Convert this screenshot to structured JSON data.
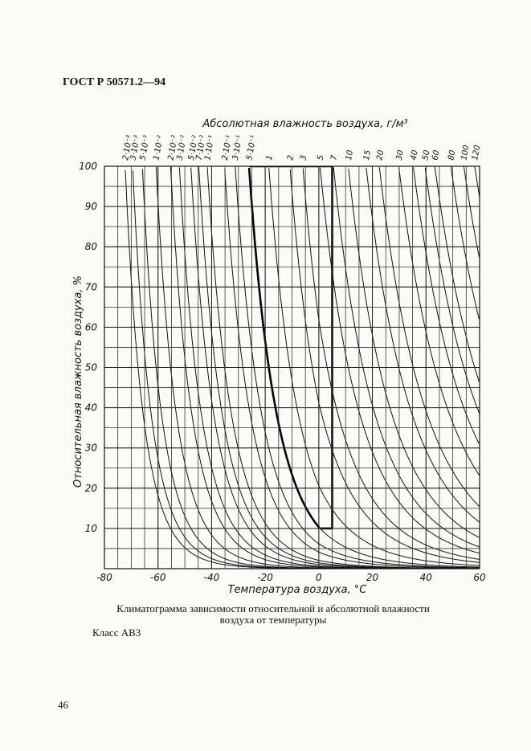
{
  "header": {
    "title": "ГОСТ Р 50571.2—94"
  },
  "chart_data": {
    "type": "climatogram",
    "top_axis_label": "Абсолютная влажность воздуха, г/м³",
    "xlabel": "Температура воздуха, °С",
    "ylabel": "Относительная влажность воздуха, %",
    "xlim": [
      -80,
      60
    ],
    "xticks": [
      -80,
      -60,
      -40,
      -20,
      0,
      20,
      40,
      60
    ],
    "ylim": [
      0,
      100
    ],
    "yticks": [
      10,
      20,
      30,
      40,
      50,
      60,
      70,
      80,
      90,
      100
    ],
    "x_minor_step": 5,
    "y_minor_step": 5,
    "grid": true,
    "color": "#111111",
    "series": [
      {
        "name": "2·10⁻³",
        "value": 0.002
      },
      {
        "name": "3·10⁻³",
        "value": 0.003
      },
      {
        "name": "5·10⁻³",
        "value": 0.005
      },
      {
        "name": "1·10⁻²",
        "value": 0.01
      },
      {
        "name": "2·10⁻²",
        "value": 0.02
      },
      {
        "name": "3·10⁻²",
        "value": 0.03
      },
      {
        "name": "5·10⁻²",
        "value": 0.05
      },
      {
        "name": "7·10⁻²",
        "value": 0.07
      },
      {
        "name": "1·10⁻¹",
        "value": 0.1
      },
      {
        "name": "2·10⁻¹",
        "value": 0.2
      },
      {
        "name": "3·10⁻¹",
        "value": 0.3
      },
      {
        "name": "5·10⁻¹",
        "value": 0.5
      },
      {
        "name": "1",
        "value": 1
      },
      {
        "name": "2",
        "value": 2
      },
      {
        "name": "3",
        "value": 3
      },
      {
        "name": "5",
        "value": 5
      },
      {
        "name": "7",
        "value": 7
      },
      {
        "name": "10",
        "value": 10
      },
      {
        "name": "15",
        "value": 15
      },
      {
        "name": "20",
        "value": 20
      },
      {
        "name": "30",
        "value": 30
      },
      {
        "name": "40",
        "value": 40
      },
      {
        "name": "50",
        "value": 50
      },
      {
        "name": "60",
        "value": 60
      },
      {
        "name": "80",
        "value": 80
      },
      {
        "name": "100",
        "value": 100
      },
      {
        "name": "120",
        "value": 120
      }
    ],
    "highlight": {
      "t_max": 5,
      "rh_min": 10,
      "rh_max": 100,
      "ah_min": 0.5
    }
  },
  "caption": {
    "line1": "Климатограмма зависимости относительной и абсолютной влажности",
    "line2": "воздуха от температуры"
  },
  "class_label": "Класс АВ3",
  "page_number": "46"
}
